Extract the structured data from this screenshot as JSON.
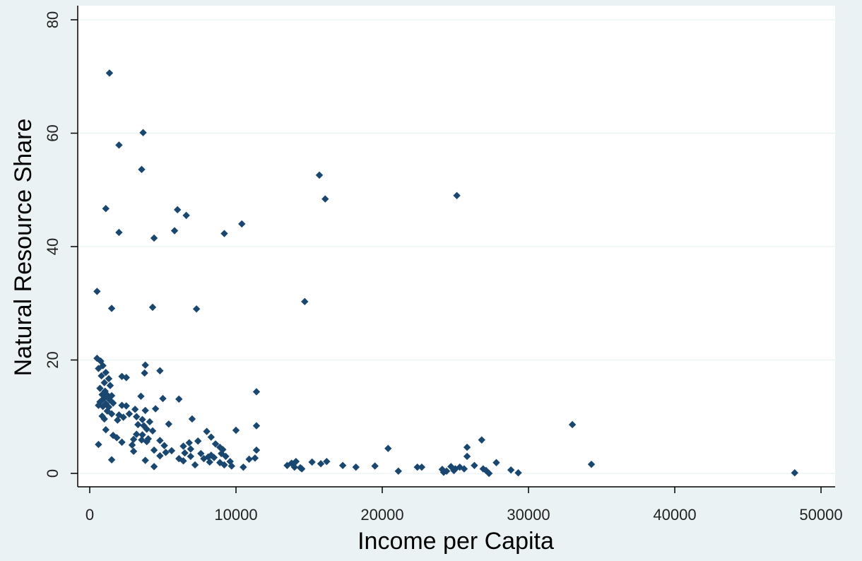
{
  "chart_data": {
    "type": "scatter",
    "title": "",
    "xlabel": "Income per Capita",
    "ylabel": "Natural Resource Share",
    "xlim": [
      0,
      50000
    ],
    "ylim": [
      0,
      80
    ],
    "x_ticks": [
      "0",
      "10000",
      "20000",
      "30000",
      "40000",
      "50000"
    ],
    "y_ticks": [
      "0",
      "20",
      "40",
      "60",
      "80"
    ],
    "grid": "horizontal",
    "marker": "diamond",
    "colors": {
      "plot_background": "#ffffff",
      "outer_background": "#eaf2f3",
      "marker": "#1a476f",
      "grid": "#eaf2f3",
      "axis": "#000000"
    },
    "points": [
      [
        1350,
        70.6
      ],
      [
        3650,
        60.1
      ],
      [
        2000,
        57.9
      ],
      [
        3550,
        53.6
      ],
      [
        15700,
        52.6
      ],
      [
        25100,
        49.0
      ],
      [
        16100,
        48.4
      ],
      [
        1100,
        46.7
      ],
      [
        6000,
        46.5
      ],
      [
        6600,
        45.5
      ],
      [
        10400,
        44.0
      ],
      [
        5800,
        42.8
      ],
      [
        2000,
        42.5
      ],
      [
        9200,
        42.3
      ],
      [
        4400,
        41.5
      ],
      [
        14700,
        30.3
      ],
      [
        500,
        32.1
      ],
      [
        1500,
        29.1
      ],
      [
        4300,
        29.3
      ],
      [
        7300,
        29.0
      ],
      [
        500,
        20.3
      ],
      [
        750,
        19.8
      ],
      [
        900,
        19.0
      ],
      [
        3800,
        19.1
      ],
      [
        600,
        18.5
      ],
      [
        1100,
        17.8
      ],
      [
        3750,
        17.7
      ],
      [
        4800,
        18.1
      ],
      [
        800,
        17.2
      ],
      [
        1300,
        16.7
      ],
      [
        2200,
        17.1
      ],
      [
        2500,
        16.9
      ],
      [
        1000,
        16.0
      ],
      [
        1400,
        15.5
      ],
      [
        700,
        15.0
      ],
      [
        11400,
        14.4
      ],
      [
        1050,
        14.5
      ],
      [
        3500,
        13.6
      ],
      [
        850,
        13.9
      ],
      [
        1200,
        13.8
      ],
      [
        1500,
        13.7
      ],
      [
        950,
        13.2
      ],
      [
        1350,
        13.0
      ],
      [
        6100,
        13.1
      ],
      [
        5000,
        13.2
      ],
      [
        700,
        12.6
      ],
      [
        1100,
        12.3
      ],
      [
        1600,
        12.4
      ],
      [
        600,
        12.0
      ],
      [
        900,
        11.8
      ],
      [
        1300,
        11.7
      ],
      [
        2200,
        12.0
      ],
      [
        2500,
        11.9
      ],
      [
        1200,
        11.0
      ],
      [
        3100,
        11.3
      ],
      [
        3800,
        11.1
      ],
      [
        4500,
        11.4
      ],
      [
        2700,
        10.5
      ],
      [
        3200,
        10.0
      ],
      [
        2000,
        10.3
      ],
      [
        1500,
        10.5
      ],
      [
        850,
        10.1
      ],
      [
        1000,
        9.6
      ],
      [
        2300,
        9.9
      ],
      [
        1900,
        9.4
      ],
      [
        3600,
        9.5
      ],
      [
        4100,
        9.1
      ],
      [
        7000,
        9.6
      ],
      [
        3300,
        8.6
      ],
      [
        3700,
        8.4
      ],
      [
        5400,
        8.7
      ],
      [
        11400,
        8.4
      ],
      [
        33000,
        8.6
      ],
      [
        3900,
        7.8
      ],
      [
        1100,
        7.7
      ],
      [
        4300,
        7.5
      ],
      [
        8000,
        7.4
      ],
      [
        10000,
        7.6
      ],
      [
        3200,
        6.9
      ],
      [
        3600,
        6.8
      ],
      [
        1600,
        6.7
      ],
      [
        8300,
        6.4
      ],
      [
        1850,
        6.3
      ],
      [
        4000,
        6.1
      ],
      [
        3000,
        6.0
      ],
      [
        3550,
        5.9
      ],
      [
        4800,
        5.8
      ],
      [
        3900,
        5.6
      ],
      [
        7400,
        5.7
      ],
      [
        26800,
        5.9
      ],
      [
        2200,
        5.5
      ],
      [
        6800,
        5.4
      ],
      [
        600,
        5.1
      ],
      [
        8600,
        5.2
      ],
      [
        2900,
        5.0
      ],
      [
        5100,
        4.9
      ],
      [
        6400,
        4.8
      ],
      [
        8900,
        4.6
      ],
      [
        25800,
        4.6
      ],
      [
        20400,
        4.4
      ],
      [
        6900,
        4.3
      ],
      [
        9100,
        4.2
      ],
      [
        4400,
        4.1
      ],
      [
        5600,
        4.0
      ],
      [
        11400,
        4.1
      ],
      [
        3000,
        3.9
      ],
      [
        5200,
        3.7
      ],
      [
        6500,
        3.6
      ],
      [
        9000,
        3.5
      ],
      [
        7600,
        3.5
      ],
      [
        8300,
        3.2
      ],
      [
        4800,
        3.1
      ],
      [
        6900,
        3.0
      ],
      [
        9300,
        3.0
      ],
      [
        25800,
        3.0
      ],
      [
        8100,
        2.9
      ],
      [
        8500,
        2.8
      ],
      [
        11300,
        2.7
      ],
      [
        6100,
        2.6
      ],
      [
        7800,
        2.6
      ],
      [
        10900,
        2.5
      ],
      [
        1500,
        2.4
      ],
      [
        3800,
        2.3
      ],
      [
        6400,
        2.2
      ],
      [
        9600,
        2.1
      ],
      [
        8200,
        2.0
      ],
      [
        14100,
        2.1
      ],
      [
        27800,
        1.9
      ],
      [
        15200,
        2.0
      ],
      [
        13800,
        1.8
      ],
      [
        16200,
        2.1
      ],
      [
        8900,
        1.9
      ],
      [
        15800,
        1.7
      ],
      [
        34300,
        1.6
      ],
      [
        7200,
        1.5
      ],
      [
        9200,
        1.5
      ],
      [
        13500,
        1.4
      ],
      [
        26300,
        1.4
      ],
      [
        9700,
        1.3
      ],
      [
        17300,
        1.4
      ],
      [
        19500,
        1.3
      ],
      [
        4400,
        1.2
      ],
      [
        10500,
        1.1
      ],
      [
        14000,
        1.1
      ],
      [
        14400,
        1.0
      ],
      [
        18200,
        1.1
      ],
      [
        22400,
        1.1
      ],
      [
        22700,
        1.1
      ],
      [
        24700,
        1.2
      ],
      [
        25300,
        1.1
      ],
      [
        25000,
        0.8
      ],
      [
        14500,
        0.8
      ],
      [
        25600,
        0.8
      ],
      [
        24100,
        0.7
      ],
      [
        26900,
        0.8
      ],
      [
        28800,
        0.6
      ],
      [
        21100,
        0.4
      ],
      [
        24400,
        0.4
      ],
      [
        24900,
        0.5
      ],
      [
        27100,
        0.5
      ],
      [
        24200,
        0.2
      ],
      [
        29300,
        0.1
      ],
      [
        27300,
        0.0
      ],
      [
        48200,
        0.1
      ]
    ]
  }
}
